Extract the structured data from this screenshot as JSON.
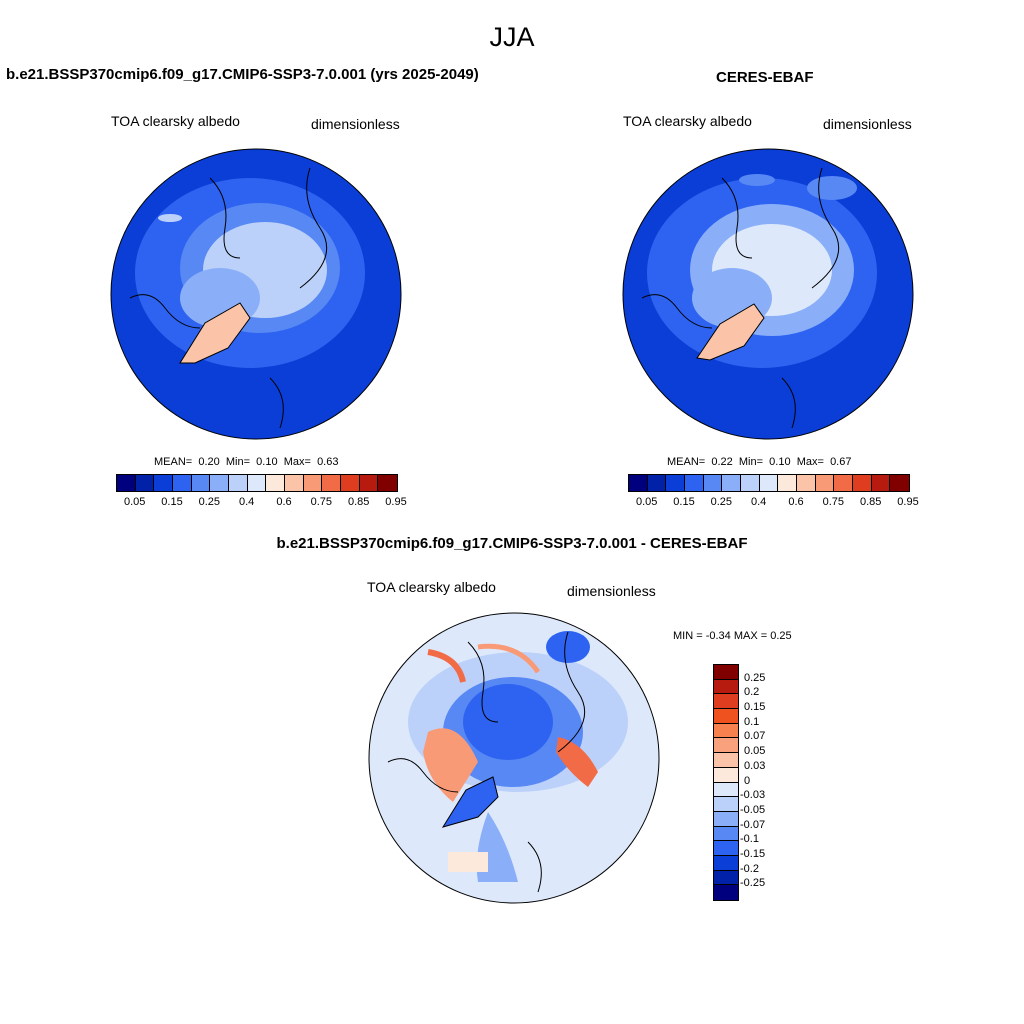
{
  "figure": {
    "season": "JJA"
  },
  "panels": [
    {
      "title": "b.e21.BSSP370cmip6.f09_g17.CMIP6-SSP3-7.0.001 (yrs 2025-2049)",
      "variable": "TOA clearsky albedo",
      "units": "dimensionless",
      "stats": {
        "mean_label": "MEAN=",
        "mean": "0.20",
        "min_label": "Min=",
        "min": "0.10",
        "max_label": "Max=",
        "max": "0.63"
      }
    },
    {
      "title": "CERES-EBAF",
      "variable": "TOA clearsky albedo",
      "units": "dimensionless",
      "stats": {
        "mean_label": "MEAN=",
        "mean": "0.22",
        "min_label": "Min=",
        "min": "0.10",
        "max_label": "Max=",
        "max": "0.67"
      }
    },
    {
      "title": "b.e21.BSSP370cmip6.f09_g17.CMIP6-SSP3-7.0.001 - CERES-EBAF",
      "variable": "TOA clearsky albedo",
      "units": "dimensionless",
      "stats_text": "MIN =  -0.34 MAX =   0.25"
    }
  ],
  "colorbar_abs": {
    "labels": [
      "0.05",
      "0.15",
      "0.25",
      "0.4",
      "0.6",
      "0.75",
      "0.85",
      "0.95"
    ],
    "colors": [
      "#00007f",
      "#0021a8",
      "#0a3ed6",
      "#2d63f0",
      "#5888f4",
      "#8aaff8",
      "#bcd1fa",
      "#dde9fb",
      "#fde9dc",
      "#fbc3a7",
      "#f99a77",
      "#f26b47",
      "#de3d20",
      "#b71a0f",
      "#800000"
    ]
  },
  "colorbar_diff": {
    "labels": [
      "0.25",
      "0.2",
      "0.15",
      "0.1",
      "0.07",
      "0.05",
      "0.03",
      "0",
      "-0.03",
      "-0.05",
      "-0.07",
      "-0.1",
      "-0.15",
      "-0.2",
      "-0.25"
    ],
    "colors": [
      "#800000",
      "#b71a0f",
      "#de3d20",
      "#f0521f",
      "#f7814f",
      "#f9a07d",
      "#fbc3a7",
      "#fde9dc",
      "#dde9fb",
      "#bcd1fa",
      "#8aaff8",
      "#5888f4",
      "#2d63f0",
      "#0a3ed6",
      "#0021a8",
      "#00007f"
    ]
  }
}
